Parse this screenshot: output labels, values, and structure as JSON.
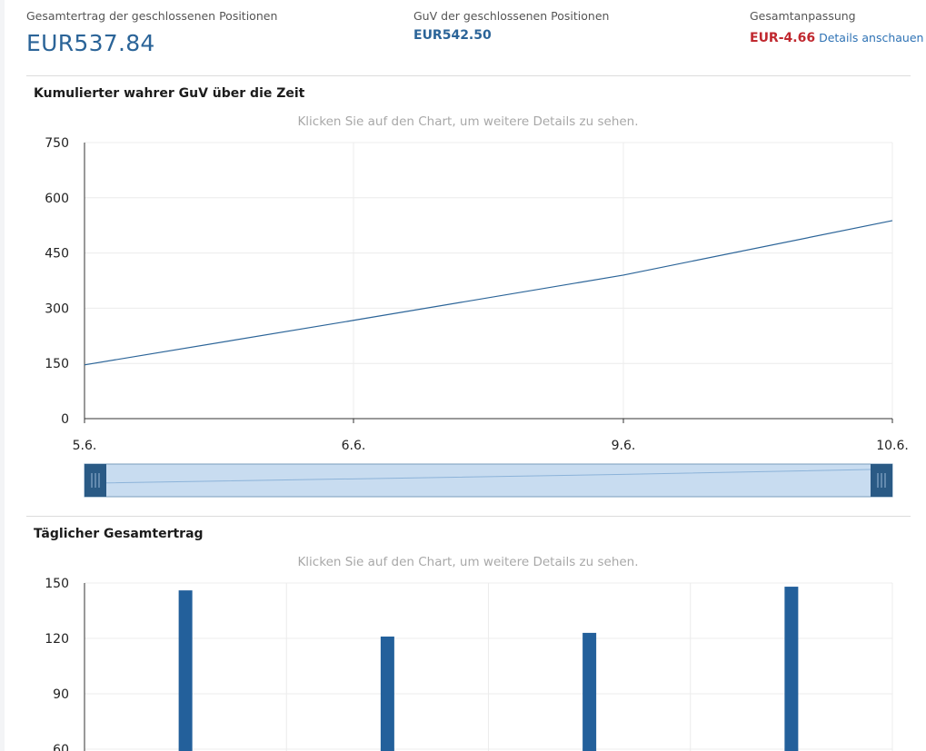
{
  "summary": {
    "total_return": {
      "label": "Gesamtertrag der geschlossenen Positionen",
      "value": "EUR537.84"
    },
    "pnl_closed": {
      "label": "GuV der geschlossenen Positionen",
      "value": "EUR542.50"
    },
    "total_adjustment": {
      "label": "Gesamtanpassung",
      "value": "EUR-4.66",
      "link_label": "Details anschauen"
    }
  },
  "colors": {
    "accent": "#2b6498",
    "negative": "#c0282f",
    "link": "#2f73b5",
    "bar": "#23609b",
    "slider_fill": "#c8dcf0",
    "slider_handle": "#2a5a85"
  },
  "chart_data": [
    {
      "type": "line",
      "title": "Kumulierter wahrer GuV über die Zeit",
      "hint": "Klicken Sie auf den Chart, um weitere Details zu sehen.",
      "categories": [
        "5.6.",
        "6.6.",
        "9.6.",
        "10.6."
      ],
      "values": [
        146,
        267,
        390,
        538
      ],
      "ylim": [
        0,
        750
      ],
      "yticks": [
        "750",
        "600",
        "450",
        "300",
        "150",
        "0"
      ],
      "grid": true,
      "legend": "none"
    },
    {
      "type": "bar",
      "title": "Täglicher Gesamtertrag",
      "hint": "Klicken Sie auf den Chart, um weitere Details zu sehen.",
      "values": [
        146,
        121,
        123,
        148
      ],
      "ylim": [
        60,
        150
      ],
      "yticks": [
        "150",
        "120",
        "90",
        "60"
      ],
      "grid": true,
      "legend": "none"
    }
  ]
}
